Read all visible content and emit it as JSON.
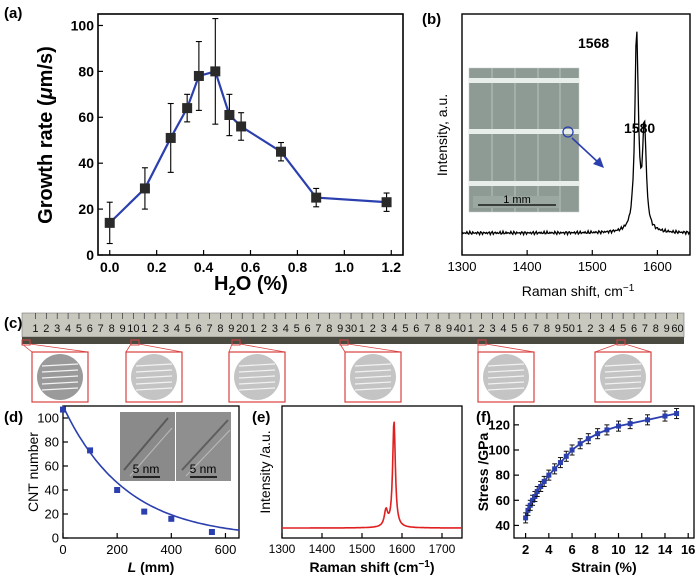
{
  "panel_labels": {
    "a": "(a)",
    "b": "(b)",
    "c": "(c)",
    "d": "(d)",
    "e": "(e)",
    "f": "(f)"
  },
  "ruler": {
    "ticks": [
      "1",
      "2",
      "3",
      "4",
      "5",
      "6",
      "7",
      "8",
      "9",
      "10",
      "1",
      "2",
      "3",
      "4",
      "5",
      "6",
      "7",
      "8",
      "9",
      "20",
      "1",
      "2",
      "3",
      "4",
      "5",
      "6",
      "7",
      "8",
      "9",
      "30",
      "1",
      "2",
      "3",
      "4",
      "5",
      "6",
      "7",
      "8",
      "9",
      "40",
      "1",
      "2",
      "3",
      "4",
      "5",
      "6",
      "7",
      "8",
      "9",
      "50",
      "1",
      "2",
      "3",
      "4",
      "5",
      "6",
      "7",
      "8",
      "9",
      "60"
    ]
  },
  "insets": {
    "b_scale": "1 mm",
    "d_scale_1": "5 nm",
    "d_scale_2": "5 nm"
  },
  "colors": {
    "a_line": "#2b3fae",
    "b_line": "#000000",
    "d_line": "#2b3fae",
    "e_line": "#e02020",
    "f_line": "#2b3fae",
    "thumb_border": "#d84040"
  },
  "chart_data": [
    {
      "id": "a",
      "type": "line",
      "xlabel": "H2O (%)",
      "ylabel": "Growth rate (μm/s)",
      "xlim": [
        -0.05,
        1.25
      ],
      "ylim": [
        0,
        105
      ],
      "xticks": [
        "0.0",
        "0.2",
        "0.4",
        "0.6",
        "0.8",
        "1.0",
        "1.2"
      ],
      "yticks": [
        "0",
        "20",
        "40",
        "60",
        "80",
        "100"
      ],
      "x": [
        0.0,
        0.15,
        0.26,
        0.33,
        0.38,
        0.45,
        0.51,
        0.56,
        0.73,
        0.88,
        1.18
      ],
      "y": [
        14,
        29,
        51,
        64,
        78,
        80,
        61,
        56,
        45,
        25,
        23
      ],
      "err": [
        9,
        9,
        15,
        6,
        15,
        23,
        9,
        6,
        4,
        4,
        4
      ]
    },
    {
      "id": "b",
      "type": "line",
      "xlabel": "Raman shift, cm⁻¹",
      "ylabel": "Intensity, a.u.",
      "xlim": [
        1300,
        1650
      ],
      "xticks": [
        "1300",
        "1400",
        "1500",
        "1600"
      ],
      "annotations": [
        "1568",
        "1580"
      ],
      "peaks": [
        {
          "x": 1568,
          "y": 100
        },
        {
          "x": 1580,
          "y": 52
        }
      ]
    },
    {
      "id": "d",
      "type": "scatter",
      "xlabel": "L (mm)",
      "ylabel": "CNT number",
      "xlim": [
        0,
        650
      ],
      "ylim": [
        0,
        110
      ],
      "xticks": [
        "0",
        "200",
        "400",
        "600"
      ],
      "yticks": [
        "0",
        "20",
        "40",
        "60",
        "80",
        "100"
      ],
      "x": [
        0,
        100,
        200,
        300,
        400,
        550
      ],
      "y": [
        107,
        73,
        40,
        22,
        16,
        5
      ]
    },
    {
      "id": "e",
      "type": "line",
      "xlabel": "Raman shift (cm⁻¹)",
      "ylabel": "Intensity /a.u.",
      "xlim": [
        1300,
        1750
      ],
      "xticks": [
        "1300",
        "1400",
        "1500",
        "1600",
        "1700"
      ],
      "peaks": [
        {
          "x": 1580,
          "y": 100
        }
      ]
    },
    {
      "id": "f",
      "type": "line",
      "xlabel": "Strain (%)",
      "ylabel": "Stress /GPa",
      "xlim": [
        1,
        16.5
      ],
      "ylim": [
        30,
        135
      ],
      "xticks": [
        "2",
        "4",
        "6",
        "8",
        "10",
        "12",
        "14",
        "16"
      ],
      "yticks": [
        "40",
        "60",
        "80",
        "100",
        "120"
      ],
      "x": [
        2.0,
        2.2,
        2.4,
        2.6,
        2.8,
        3.0,
        3.3,
        3.6,
        4.0,
        4.5,
        5.0,
        5.5,
        6.0,
        6.7,
        7.4,
        8.2,
        9.0,
        10.0,
        11.0,
        12.5,
        14.0,
        15.0
      ],
      "y": [
        46,
        52,
        56,
        60,
        63,
        67,
        71,
        75,
        80,
        85,
        90,
        95,
        100,
        105,
        109,
        113,
        116,
        119,
        121,
        124,
        127,
        129
      ],
      "err": [
        4,
        4,
        4,
        4,
        4,
        4,
        4,
        4,
        4,
        4,
        4,
        4,
        4,
        4,
        4,
        4,
        4,
        4,
        4,
        4,
        4,
        4
      ]
    }
  ]
}
